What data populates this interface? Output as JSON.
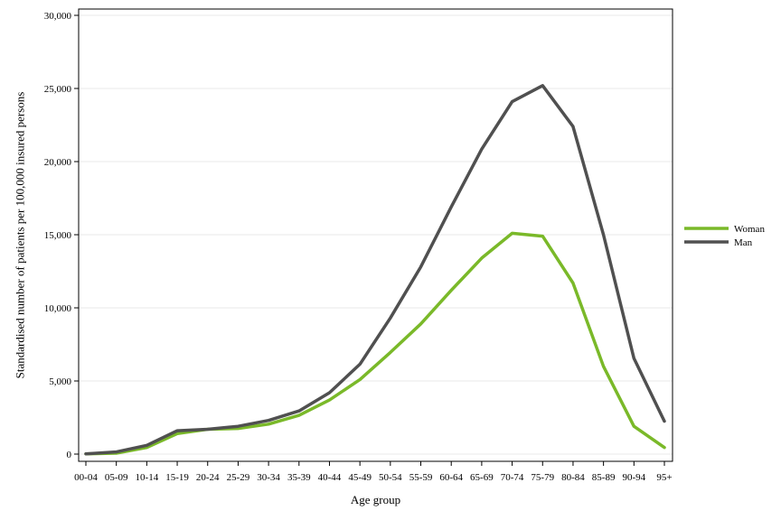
{
  "chart_data": {
    "type": "line",
    "title": "",
    "xlabel": "Age group",
    "ylabel": "Standardised number of patients per 100,000 insured persons",
    "categories": [
      "00-04",
      "05-09",
      "10-14",
      "15-19",
      "20-24",
      "25-29",
      "30-34",
      "35-39",
      "40-44",
      "45-49",
      "50-54",
      "55-59",
      "60-64",
      "65-69",
      "70-74",
      "75-79",
      "80-84",
      "85-89",
      "90-94",
      "95+"
    ],
    "ylim": [
      0,
      30000
    ],
    "yticks": [
      0,
      5000,
      10000,
      15000,
      20000,
      25000,
      30000
    ],
    "ytick_labels": [
      "0",
      "5,000",
      "10,000",
      "15,000",
      "20,000",
      "25,000",
      "30,000"
    ],
    "grid": true,
    "legend_position": "right",
    "series": [
      {
        "name": "Woman",
        "color": "#7ab929",
        "values": [
          20,
          60,
          450,
          1400,
          1700,
          1750,
          2050,
          2650,
          3700,
          5100,
          6950,
          8900,
          11200,
          13400,
          15100,
          14900,
          11700,
          6000,
          1900,
          450
        ]
      },
      {
        "name": "Man",
        "color": "#505050",
        "values": [
          20,
          150,
          600,
          1600,
          1700,
          1900,
          2300,
          2950,
          4200,
          6150,
          9300,
          12800,
          16900,
          20850,
          24100,
          25200,
          22400,
          15000,
          6550,
          2250
        ]
      }
    ]
  }
}
